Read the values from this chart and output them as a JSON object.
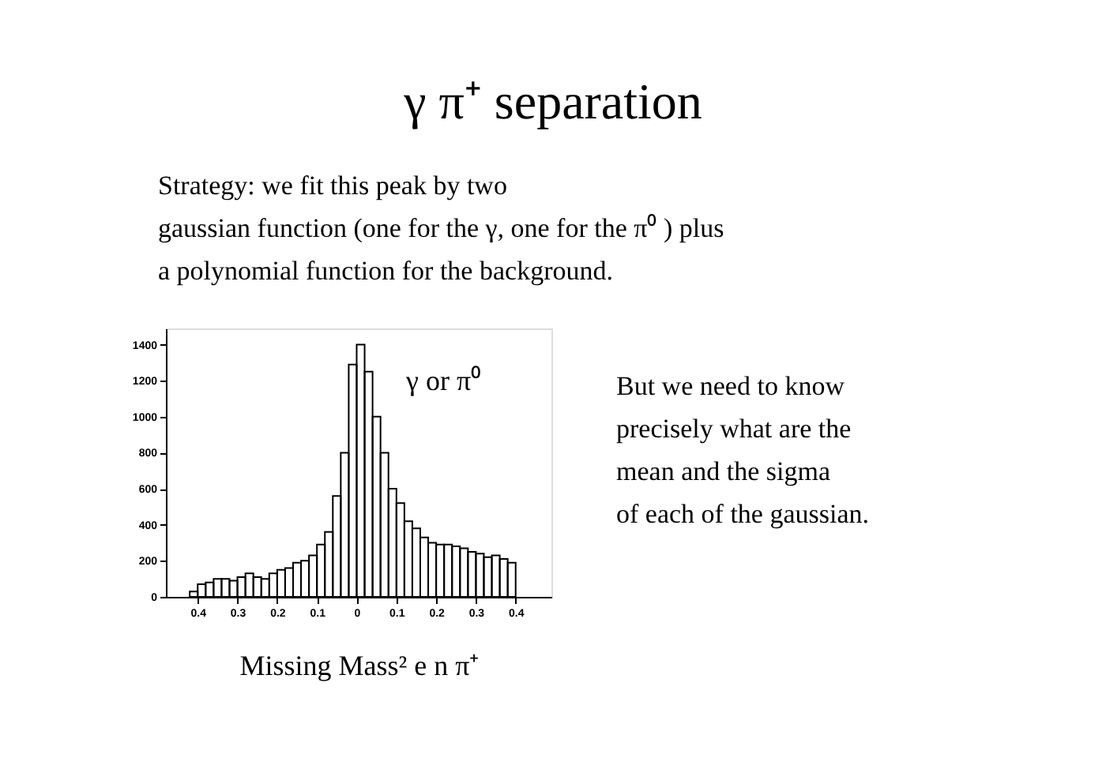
{
  "chart_data": {
    "type": "histogram",
    "title": "γ π⁺ separation",
    "xlabel": "Missing Mass² e n π⁺",
    "annotations": [
      "Strategy:  we fit this peak by two",
      "gaussian function (one for the γ, one for the π⁰ ) plus",
      "a polynomial function for the background.",
      "γ or π⁰",
      "But we need to know",
      "precisely what are the",
      "mean and the  sigma",
      "of each of the gaussian."
    ],
    "bins": [
      -0.42,
      -0.4,
      -0.38,
      -0.36,
      -0.34,
      -0.32,
      -0.3,
      -0.28,
      -0.26,
      -0.24,
      -0.22,
      -0.2,
      -0.18,
      -0.16,
      -0.14,
      -0.12,
      -0.1,
      -0.08,
      -0.06,
      -0.04,
      -0.02,
      0.0,
      0.02,
      0.04,
      0.06,
      0.08,
      0.1,
      0.12,
      0.14,
      0.16,
      0.18,
      0.2,
      0.22,
      0.24,
      0.26,
      0.28,
      0.3,
      0.32,
      0.34,
      0.36,
      0.38,
      0.4
    ],
    "values": [
      30,
      70,
      80,
      100,
      100,
      90,
      110,
      130,
      110,
      100,
      130,
      150,
      160,
      190,
      200,
      230,
      290,
      360,
      560,
      800,
      1290,
      1400,
      1250,
      1000,
      800,
      600,
      520,
      420,
      380,
      330,
      300,
      290,
      290,
      280,
      270,
      250,
      240,
      220,
      230,
      210,
      190
    ],
    "color": "#000000",
    "xlim": [
      -0.48,
      0.49
    ],
    "xticks": [
      {
        "value": -0.4,
        "label": "0.4"
      },
      {
        "value": -0.3,
        "label": "0.3"
      },
      {
        "value": -0.2,
        "label": "0.2"
      },
      {
        "value": -0.1,
        "label": "0.1"
      },
      0,
      0.1,
      0.2,
      0.3,
      0.4
    ],
    "ylim": [
      0,
      1490
    ],
    "yticks": [
      0,
      200,
      400,
      600,
      800,
      1000,
      1200,
      1400
    ],
    "grid": false
  }
}
